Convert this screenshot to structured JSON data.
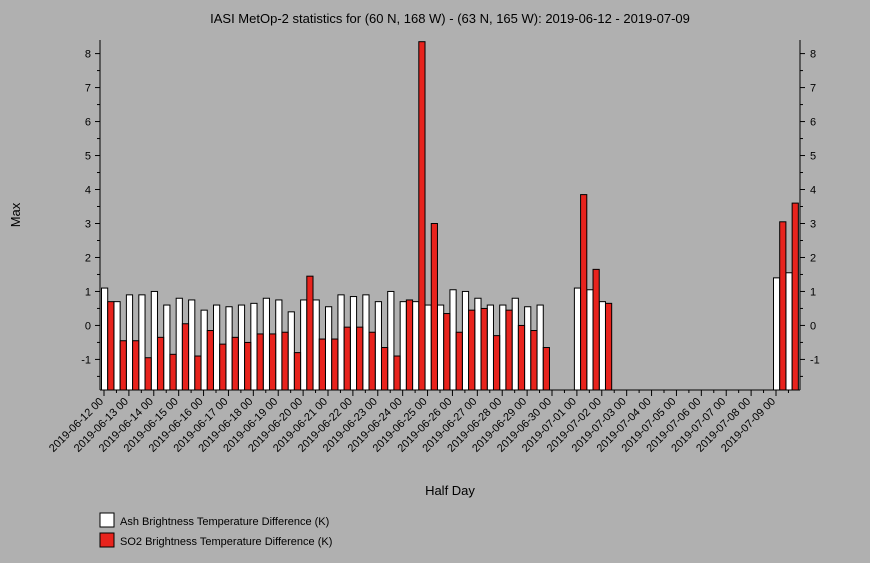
{
  "chart_data": {
    "type": "bar",
    "title": "IASI MetOp-2 statistics for (60 N, 168 W) - (63 N, 165 W): 2019-06-12 - 2019-07-09",
    "xlabel": "Half Day",
    "ylabel": "Max",
    "ylim": [
      -1.9,
      8.4
    ],
    "yticks": [
      -1,
      0,
      1,
      2,
      3,
      4,
      5,
      6,
      7,
      8
    ],
    "xtick_labels": [
      "2019-06-12 00",
      "2019-06-13 00",
      "2019-06-14 00",
      "2019-06-15 00",
      "2019-06-16 00",
      "2019-06-17 00",
      "2019-06-18 00",
      "2019-06-19 00",
      "2019-06-20 00",
      "2019-06-21 00",
      "2019-06-22 00",
      "2019-06-23 00",
      "2019-06-24 00",
      "2019-06-25 00",
      "2019-06-26 00",
      "2019-06-27 00",
      "2019-06-28 00",
      "2019-06-29 00",
      "2019-06-30 00",
      "2019-07-01 00",
      "2019-07-02 00",
      "2019-07-03 00",
      "2019-07-04 00",
      "2019-07-05 00",
      "2019-07-06 00",
      "2019-07-07 00",
      "2019-07-08 00",
      "2019-07-09 00"
    ],
    "legend_position": "bottom-left",
    "series": [
      {
        "name": "Ash Brightness Temperature Difference (K)",
        "color": "#ffffff",
        "values": [
          1.1,
          0.7,
          0.9,
          0.9,
          1.0,
          0.6,
          0.8,
          0.75,
          0.45,
          0.6,
          0.55,
          0.6,
          0.65,
          0.8,
          0.75,
          0.4,
          0.75,
          0.75,
          0.55,
          0.9,
          0.85,
          0.9,
          0.7,
          1.0,
          0.7,
          0.7,
          0.6,
          0.6,
          1.05,
          1.0,
          0.8,
          0.6,
          0.6,
          0.8,
          0.55,
          0.6,
          null,
          null,
          1.1,
          1.05,
          0.7,
          null,
          null,
          null,
          null,
          null,
          null,
          null,
          null,
          null,
          null,
          null,
          null,
          null,
          1.4,
          1.55
        ]
      },
      {
        "name": "SO2 Brightness Temperature Difference (K)",
        "color": "#e8231d",
        "values": [
          0.7,
          -0.45,
          -0.45,
          -0.95,
          -0.35,
          -0.85,
          0.05,
          -0.9,
          -0.15,
          -0.55,
          -0.35,
          -0.5,
          -0.25,
          -0.25,
          -0.2,
          -0.8,
          1.45,
          -0.4,
          -0.4,
          -0.05,
          -0.05,
          -0.2,
          -0.65,
          -0.9,
          0.75,
          8.35,
          3.0,
          0.35,
          -0.2,
          0.45,
          0.5,
          -0.3,
          0.45,
          0.0,
          -0.15,
          -0.65,
          null,
          null,
          3.85,
          1.65,
          0.65,
          null,
          null,
          null,
          null,
          null,
          null,
          null,
          null,
          null,
          null,
          null,
          null,
          null,
          3.05,
          3.6
        ]
      }
    ]
  }
}
